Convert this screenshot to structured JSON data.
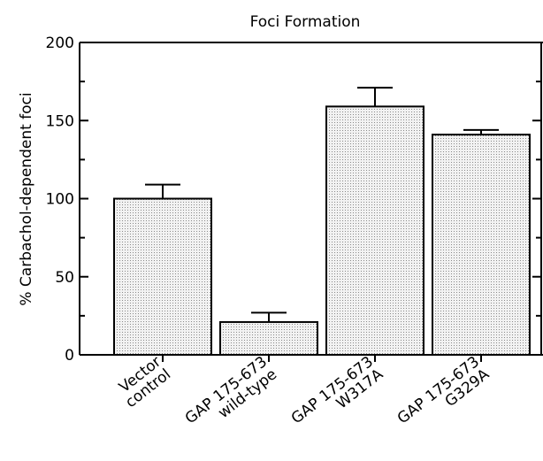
{
  "chart_data": {
    "type": "bar",
    "title": "Foci Formation",
    "xlabel": "",
    "ylabel": "% Carbachol-dependent foci",
    "ylim": [
      0,
      200
    ],
    "yticks": [
      0,
      50,
      100,
      150,
      200
    ],
    "categories": [
      [
        "Vector",
        "control"
      ],
      [
        "GAP 175-673",
        "wild-type"
      ],
      [
        "GAP 175-673",
        "W317A"
      ],
      [
        "GAP 175-673",
        "G329A"
      ]
    ],
    "values": [
      100,
      21,
      159,
      141
    ],
    "errors": [
      9,
      6,
      12,
      3
    ],
    "grid": false,
    "legend": "none",
    "bar_fill": "#e4e4e4",
    "bar_stroke": "#000000"
  }
}
